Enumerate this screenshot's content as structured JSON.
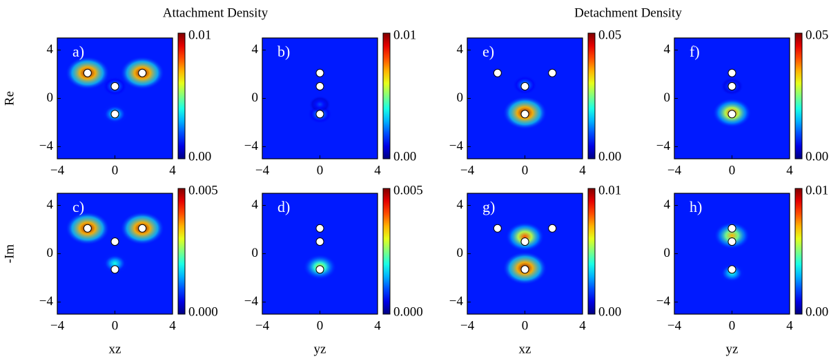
{
  "figure": {
    "titles": [
      "Attachment Density",
      "Detachment Density"
    ]
  },
  "chart_data": [
    {
      "type": "heatmap",
      "label": "a)",
      "ylabel": "Re",
      "xlim": [
        -4,
        4
      ],
      "ylim": [
        -5,
        5
      ],
      "xticks": [
        {
          "value": -4,
          "label": "−4"
        },
        0,
        4
      ],
      "yticks": [
        {
          "value": -4,
          "label": "−4"
        },
        0,
        4
      ],
      "clim": [
        0,
        0.01
      ],
      "cticks": [
        {
          "value": 0,
          "label": "0.00"
        },
        0.01
      ],
      "atoms": {
        "x": [
          -1.9,
          1.9,
          0,
          0
        ],
        "y": [
          2.1,
          2.1,
          1,
          -1.3
        ]
      },
      "peaks": {
        "x": [
          -1.9,
          1.9,
          0,
          0
        ],
        "y": [
          2.1,
          2.1,
          1,
          -1.3
        ],
        "values": [
          0.01,
          0.01,
          0.003,
          0.004
        ]
      }
    },
    {
      "type": "heatmap",
      "label": "b)",
      "xlim": [
        -4,
        4
      ],
      "ylim": [
        -5,
        5
      ],
      "xticks": [
        {
          "value": -4,
          "label": "−4"
        },
        0,
        4
      ],
      "yticks": [
        {
          "value": -4,
          "label": "−4"
        },
        0,
        4
      ],
      "clim": [
        0,
        0.01
      ],
      "cticks": [
        {
          "value": 0,
          "label": "0.00"
        },
        0.01
      ],
      "atoms": {
        "x": [
          0,
          0,
          0
        ],
        "y": [
          2.1,
          1,
          -1.3
        ]
      },
      "peaks": {
        "x": [
          0,
          0
        ],
        "y": [
          -1.3,
          -0.5
        ],
        "values": [
          0.003,
          0.002
        ]
      }
    },
    {
      "type": "heatmap",
      "label": "e)",
      "xlim": [
        -4,
        4
      ],
      "ylim": [
        -5,
        5
      ],
      "xticks": [
        {
          "value": -4,
          "label": "−4"
        },
        0,
        4
      ],
      "yticks": [
        {
          "value": -4,
          "label": "−4"
        },
        0,
        4
      ],
      "clim": [
        0,
        0.05
      ],
      "cticks": [
        {
          "value": 0,
          "label": "0.00"
        },
        0.05
      ],
      "atoms": {
        "x": [
          -1.9,
          1.9,
          0,
          0
        ],
        "y": [
          2.1,
          2.1,
          1,
          -1.3
        ]
      },
      "peaks": {
        "x": [
          0,
          0
        ],
        "y": [
          -1.2,
          1.1
        ],
        "values": [
          0.05,
          0.015
        ]
      }
    },
    {
      "type": "heatmap",
      "label": "f)",
      "xlim": [
        -4,
        4
      ],
      "ylim": [
        -5,
        5
      ],
      "xticks": [
        {
          "value": -4,
          "label": "−4"
        },
        0,
        4
      ],
      "yticks": [
        {
          "value": -4,
          "label": "−4"
        },
        0,
        4
      ],
      "clim": [
        0,
        0.05
      ],
      "cticks": [
        {
          "value": 0,
          "label": "0.00"
        },
        0.05
      ],
      "atoms": {
        "x": [
          0,
          0,
          0
        ],
        "y": [
          2.1,
          1,
          -1.3
        ]
      },
      "peaks": {
        "x": [
          0,
          0
        ],
        "y": [
          -1.2,
          1.0
        ],
        "values": [
          0.04,
          0.012
        ]
      }
    },
    {
      "type": "heatmap",
      "label": "c)",
      "ylabel": "-Im",
      "xlabel": "xz",
      "xlim": [
        -4,
        4
      ],
      "ylim": [
        -5,
        5
      ],
      "xticks": [
        {
          "value": -4,
          "label": "−4"
        },
        0,
        4
      ],
      "yticks": [
        {
          "value": -4,
          "label": "−4"
        },
        0,
        4
      ],
      "clim": [
        0,
        0.005
      ],
      "cticks": [
        {
          "value": 0,
          "label": "0.000"
        },
        0.005
      ],
      "atoms": {
        "x": [
          -1.9,
          1.9,
          0,
          0
        ],
        "y": [
          2.1,
          2.1,
          1,
          -1.3
        ]
      },
      "peaks": {
        "x": [
          -1.9,
          1.9,
          0
        ],
        "y": [
          2.1,
          2.1,
          -0.8
        ],
        "values": [
          0.005,
          0.005,
          0.002
        ]
      }
    },
    {
      "type": "heatmap",
      "label": "d)",
      "xlabel": "yz",
      "xlim": [
        -4,
        4
      ],
      "ylim": [
        -5,
        5
      ],
      "xticks": [
        {
          "value": -4,
          "label": "−4"
        },
        0,
        4
      ],
      "yticks": [
        {
          "value": -4,
          "label": "−4"
        },
        0,
        4
      ],
      "clim": [
        0,
        0.005
      ],
      "cticks": [
        {
          "value": 0,
          "label": "0.000"
        },
        0.005
      ],
      "atoms": {
        "x": [
          0,
          0,
          0
        ],
        "y": [
          2.1,
          1,
          -1.3
        ]
      },
      "peaks": {
        "x": [
          0
        ],
        "y": [
          -1.1
        ],
        "values": [
          0.003
        ]
      }
    },
    {
      "type": "heatmap",
      "label": "g)",
      "xlabel": "xz",
      "xlim": [
        -4,
        4
      ],
      "ylim": [
        -5,
        5
      ],
      "xticks": [
        {
          "value": -4,
          "label": "−4"
        },
        0,
        4
      ],
      "yticks": [
        {
          "value": -4,
          "label": "−4"
        },
        0,
        4
      ],
      "clim": [
        0,
        0.01
      ],
      "cticks": [
        {
          "value": 0,
          "label": "0.00"
        },
        0.01
      ],
      "atoms": {
        "x": [
          -1.9,
          1.9,
          0,
          0
        ],
        "y": [
          2.1,
          2.1,
          1,
          -1.3
        ]
      },
      "peaks": {
        "x": [
          0,
          0
        ],
        "y": [
          -1.2,
          1.4
        ],
        "values": [
          0.01,
          0.008
        ]
      }
    },
    {
      "type": "heatmap",
      "label": "h)",
      "xlabel": "yz",
      "xlim": [
        -4,
        4
      ],
      "ylim": [
        -5,
        5
      ],
      "xticks": [
        {
          "value": -4,
          "label": "−4"
        },
        0,
        4
      ],
      "yticks": [
        {
          "value": -4,
          "label": "−4"
        },
        0,
        4
      ],
      "clim": [
        0,
        0.01
      ],
      "cticks": [
        {
          "value": 0,
          "label": "0.00"
        },
        0.01
      ],
      "atoms": {
        "x": [
          0,
          0,
          0
        ],
        "y": [
          2.1,
          1,
          -1.3
        ]
      },
      "peaks": {
        "x": [
          0,
          0
        ],
        "y": [
          1.5,
          -1.6
        ],
        "values": [
          0.007,
          0.004
        ]
      }
    }
  ]
}
